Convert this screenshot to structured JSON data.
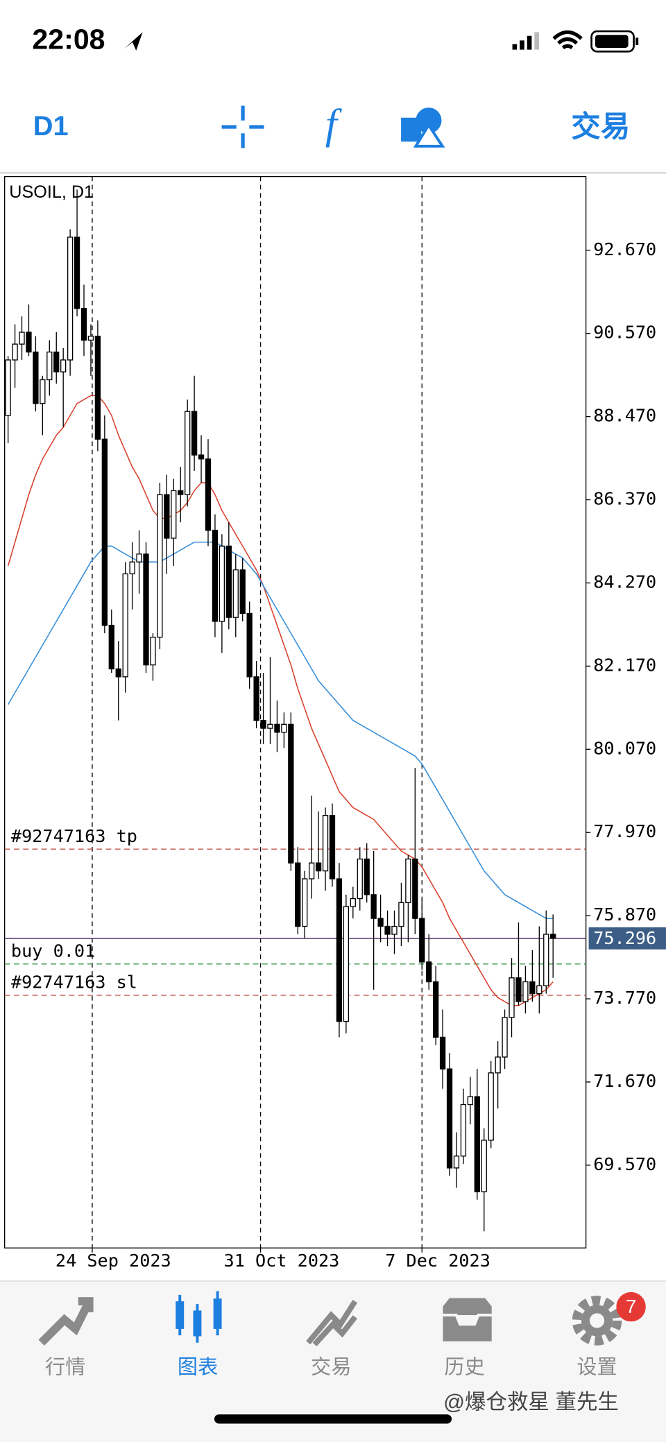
{
  "status_bar": {
    "time": "22:08"
  },
  "toolbar": {
    "timeframe": "D1",
    "trade": "交易"
  },
  "chart_data": {
    "type": "candlestick",
    "title": "USOIL, D1",
    "xlim": [
      0,
      84.27
    ],
    "xticks": [
      {
        "value": 12.7,
        "label": "24 Sep 2023"
      },
      {
        "value": 37.1,
        "label": "31 Oct 2023"
      },
      {
        "value": 60.5,
        "label": "7 Dec 2023"
      }
    ],
    "ylim": [
      67.48,
      94.53
    ],
    "yticks": [
      {
        "value": 92.67,
        "label": "92.670"
      },
      {
        "value": 90.57,
        "label": "90.570"
      },
      {
        "value": 88.47,
        "label": "88.470"
      },
      {
        "value": 86.37,
        "label": "86.370"
      },
      {
        "value": 84.27,
        "label": "84.270"
      },
      {
        "value": 82.17,
        "label": "82.170"
      },
      {
        "value": 80.07,
        "label": "80.070"
      },
      {
        "value": 77.97,
        "label": "77.970"
      },
      {
        "value": 75.87,
        "label": "75.870"
      },
      {
        "value": 73.77,
        "label": "73.770"
      },
      {
        "value": 71.67,
        "label": "71.670"
      },
      {
        "value": 69.57,
        "label": "69.570"
      }
    ],
    "up_color": "#ffffff",
    "down_color": "#000000",
    "candles": [
      [
        88.5,
        90.0,
        87.8,
        89.9
      ],
      [
        89.9,
        90.8,
        89.2,
        90.3
      ],
      [
        90.3,
        91.0,
        89.9,
        90.6
      ],
      [
        90.6,
        91.3,
        90.0,
        90.1
      ],
      [
        90.1,
        90.5,
        88.6,
        88.8
      ],
      [
        88.8,
        89.5,
        88.0,
        89.4
      ],
      [
        89.4,
        90.4,
        89.0,
        90.1
      ],
      [
        90.1,
        90.6,
        89.3,
        89.6
      ],
      [
        89.6,
        90.2,
        88.2,
        89.9
      ],
      [
        89.9,
        93.2,
        89.5,
        93.0
      ],
      [
        93.0,
        94.2,
        91.0,
        91.2
      ],
      [
        91.2,
        91.8,
        90.0,
        90.4
      ],
      [
        90.4,
        90.8,
        89.5,
        90.5
      ],
      [
        90.5,
        90.9,
        87.6,
        87.9
      ],
      [
        87.9,
        88.5,
        83.0,
        83.2
      ],
      [
        83.2,
        83.6,
        82.0,
        82.1
      ],
      [
        82.1,
        82.8,
        80.8,
        81.9
      ],
      [
        81.9,
        84.8,
        81.5,
        84.5
      ],
      [
        84.5,
        85.3,
        83.6,
        84.8
      ],
      [
        84.8,
        85.6,
        84.0,
        85.0
      ],
      [
        85.0,
        85.3,
        82.0,
        82.2
      ],
      [
        82.2,
        83.0,
        81.8,
        82.9
      ],
      [
        82.9,
        86.8,
        82.6,
        86.5
      ],
      [
        86.5,
        87.0,
        84.5,
        85.4
      ],
      [
        85.4,
        86.9,
        84.7,
        86.6
      ],
      [
        86.6,
        87.2,
        85.8,
        86.5
      ],
      [
        86.5,
        88.9,
        86.2,
        88.6
      ],
      [
        88.6,
        89.5,
        87.1,
        87.5
      ],
      [
        87.5,
        88.0,
        86.8,
        87.4
      ],
      [
        87.4,
        87.9,
        85.2,
        85.6
      ],
      [
        85.6,
        86.0,
        82.9,
        83.3
      ],
      [
        83.3,
        85.5,
        82.5,
        85.2
      ],
      [
        85.2,
        85.8,
        83.1,
        83.4
      ],
      [
        83.4,
        85.0,
        82.9,
        84.6
      ],
      [
        84.6,
        84.9,
        83.3,
        83.5
      ],
      [
        83.5,
        83.8,
        81.6,
        81.9
      ],
      [
        81.9,
        82.3,
        80.6,
        80.8
      ],
      [
        80.8,
        82.0,
        80.2,
        80.6
      ],
      [
        80.6,
        82.4,
        80.2,
        80.7
      ],
      [
        80.7,
        81.3,
        80.0,
        80.5
      ],
      [
        80.5,
        81.0,
        80.1,
        80.7
      ],
      [
        80.7,
        81.0,
        77.0,
        77.2
      ],
      [
        77.2,
        77.6,
        75.4,
        75.6
      ],
      [
        75.6,
        77.0,
        75.3,
        76.8
      ],
      [
        76.8,
        78.9,
        76.3,
        77.2
      ],
      [
        77.2,
        78.5,
        76.8,
        77.0
      ],
      [
        77.0,
        78.6,
        76.5,
        78.4
      ],
      [
        78.4,
        78.7,
        76.6,
        76.8
      ],
      [
        76.8,
        77.2,
        72.8,
        73.2
      ],
      [
        73.2,
        76.4,
        72.9,
        76.1
      ],
      [
        76.1,
        76.6,
        75.8,
        76.3
      ],
      [
        76.3,
        77.6,
        76.0,
        77.3
      ],
      [
        77.3,
        77.7,
        76.2,
        76.4
      ],
      [
        76.4,
        77.5,
        74.0,
        75.8
      ],
      [
        75.8,
        76.4,
        75.2,
        75.6
      ],
      [
        75.6,
        76.0,
        75.1,
        75.4
      ],
      [
        75.4,
        76.0,
        74.9,
        75.6
      ],
      [
        75.6,
        76.7,
        75.1,
        76.2
      ],
      [
        76.2,
        77.4,
        75.2,
        77.3
      ],
      [
        77.3,
        79.6,
        75.4,
        75.8
      ],
      [
        75.8,
        76.3,
        74.5,
        74.7
      ],
      [
        74.7,
        75.4,
        74.0,
        74.2
      ],
      [
        74.2,
        74.6,
        72.6,
        72.8
      ],
      [
        72.8,
        73.5,
        71.5,
        72.0
      ],
      [
        72.0,
        72.4,
        69.3,
        69.5
      ],
      [
        69.5,
        70.4,
        69.0,
        69.8
      ],
      [
        69.8,
        71.5,
        69.6,
        71.1
      ],
      [
        71.1,
        71.8,
        70.6,
        71.3
      ],
      [
        71.3,
        72.0,
        68.7,
        68.9
      ],
      [
        68.9,
        70.5,
        67.9,
        70.2
      ],
      [
        70.2,
        72.2,
        70.0,
        71.9
      ],
      [
        71.9,
        72.7,
        71.0,
        72.3
      ],
      [
        72.3,
        73.5,
        72.0,
        73.3
      ],
      [
        73.3,
        74.8,
        72.8,
        74.3
      ],
      [
        74.3,
        75.7,
        73.6,
        73.7
      ],
      [
        73.7,
        74.6,
        73.4,
        74.2
      ],
      [
        74.2,
        75.0,
        73.7,
        73.9
      ],
      [
        73.9,
        75.6,
        73.4,
        74.1
      ],
      [
        74.1,
        76.0,
        73.9,
        75.4
      ],
      [
        75.4,
        75.9,
        74.3,
        75.3
      ]
    ],
    "series": [
      {
        "color": "#d9432f",
        "values": [
          84.7,
          85.3,
          85.9,
          86.5,
          87.0,
          87.4,
          87.7,
          88.0,
          88.2,
          88.5,
          88.8,
          88.9,
          89.0,
          89.0,
          88.8,
          88.5,
          88.0,
          87.6,
          87.2,
          86.9,
          86.5,
          86.1,
          85.9,
          85.9,
          86.0,
          86.1,
          86.3,
          86.6,
          86.8,
          86.8,
          86.5,
          86.1,
          85.8,
          85.5,
          85.2,
          84.9,
          84.6,
          84.2,
          83.7,
          83.2,
          82.7,
          82.2,
          81.6,
          81.1,
          80.6,
          80.2,
          79.8,
          79.4,
          79.0,
          78.8,
          78.6,
          78.5,
          78.4,
          78.3,
          78.1,
          77.9,
          77.7,
          77.5,
          77.4,
          77.3,
          77.1,
          76.8,
          76.5,
          76.2,
          75.8,
          75.5,
          75.2,
          74.9,
          74.6,
          74.3,
          74.0,
          73.8,
          73.7,
          73.6,
          73.6,
          73.7,
          73.8,
          73.9,
          74.0,
          74.2
        ]
      },
      {
        "color": "#3a8fd9",
        "values": [
          81.2,
          81.5,
          81.8,
          82.1,
          82.4,
          82.7,
          83.0,
          83.3,
          83.6,
          83.9,
          84.2,
          84.5,
          84.8,
          85.0,
          85.2,
          85.2,
          85.1,
          85.0,
          84.9,
          84.8,
          84.8,
          84.8,
          84.8,
          84.9,
          85.0,
          85.1,
          85.2,
          85.3,
          85.3,
          85.3,
          85.3,
          85.2,
          85.1,
          85.0,
          84.9,
          84.7,
          84.5,
          84.2,
          83.9,
          83.6,
          83.3,
          83.0,
          82.7,
          82.4,
          82.1,
          81.8,
          81.6,
          81.4,
          81.2,
          81.0,
          80.8,
          80.7,
          80.6,
          80.5,
          80.4,
          80.3,
          80.2,
          80.1,
          80.0,
          79.9,
          79.7,
          79.4,
          79.1,
          78.8,
          78.5,
          78.2,
          77.9,
          77.6,
          77.3,
          77.0,
          76.8,
          76.6,
          76.4,
          76.3,
          76.2,
          76.1,
          76.0,
          75.9,
          75.8,
          75.8
        ]
      }
    ],
    "levels": [
      {
        "name": "#92747163 tp",
        "value": 77.55,
        "color": "#c0564a"
      },
      {
        "name": "buy 0.01",
        "value": 74.65,
        "color": "#3f9a4a"
      },
      {
        "name": "#92747163 sl",
        "value": 73.86,
        "color": "#c0564a"
      }
    ],
    "bid": {
      "value": 75.296,
      "color": "#6b4a7a"
    }
  },
  "tab_bar": {
    "tabs": [
      "行情",
      "图表",
      "交易",
      "历史",
      "设置"
    ],
    "active": 1,
    "badge": 7
  },
  "watermark": "@爆仓救星 董先生"
}
